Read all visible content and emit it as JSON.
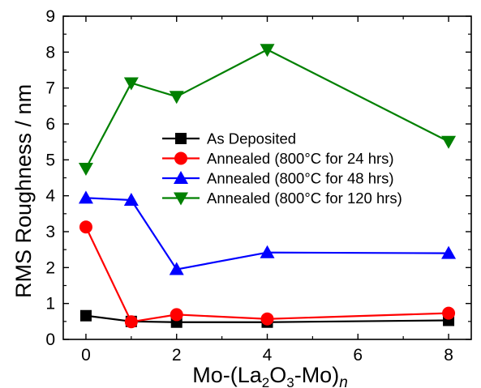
{
  "chart_data": {
    "type": "line",
    "xlabel": {
      "prefix": "Mo-(La",
      "sub1": "2",
      "mid": "O",
      "sub2": "3",
      "suffix": "-Mo)",
      "italic": "n"
    },
    "ylabel": "RMS Roughness / nm",
    "xlim": [
      -0.5,
      8.5
    ],
    "ylim": [
      0,
      9
    ],
    "xticks": [
      0,
      2,
      4,
      6,
      8
    ],
    "yticks": [
      0,
      1,
      2,
      3,
      4,
      5,
      6,
      7,
      8,
      9
    ],
    "grid": false,
    "legend_position": "center",
    "x": [
      0,
      1,
      2,
      4,
      8
    ],
    "series": [
      {
        "name": "As Deposited",
        "color": "#000000",
        "marker": "square",
        "values": [
          0.66,
          0.5,
          0.48,
          0.48,
          0.53
        ]
      },
      {
        "name": "Annealed (800°C for 24 hrs)",
        "color": "#ff0000",
        "marker": "circle",
        "values": [
          3.13,
          0.49,
          0.69,
          0.57,
          0.73
        ]
      },
      {
        "name": "Annealed (800°C for 48 hrs)",
        "color": "#0000ff",
        "marker": "triangle-up",
        "values": [
          3.94,
          3.88,
          1.95,
          2.42,
          2.4
        ]
      },
      {
        "name": "Annealed (800°C for 120 hrs)",
        "color": "#008000",
        "marker": "triangle-down",
        "values": [
          4.76,
          7.14,
          6.76,
          8.07,
          5.51
        ]
      }
    ]
  }
}
